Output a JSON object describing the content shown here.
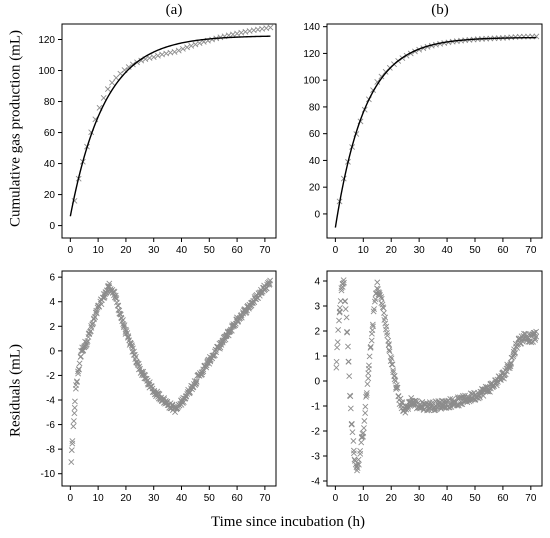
{
  "figure": {
    "ylabel_top": "Cumulative gas production (mL)",
    "ylabel_bottom": "Residuals (mL)",
    "xlabel": "Time since incubation (h)",
    "colors": {
      "observed": "#8c8c8c",
      "fitted": "#000000",
      "axis": "#000000"
    }
  },
  "chart_data": [
    {
      "id": "a_top",
      "type": "scatter",
      "title": "(a)",
      "xlim": [
        -3,
        74
      ],
      "ylim": [
        -8,
        130
      ],
      "xticks": [
        0,
        10,
        20,
        30,
        40,
        50,
        60,
        70
      ],
      "yticks": [
        0,
        20,
        40,
        60,
        80,
        100,
        120
      ],
      "series": [
        {
          "kind": "observed",
          "marker": "x",
          "fit": {
            "A": 122.5,
            "k": 0.08,
            "t0": -0.63
          },
          "residual_scale": 1.0,
          "t_start": 1.5,
          "t_step": 1.5
        },
        {
          "kind": "fitted",
          "line": true,
          "fit": {
            "A": 122.5,
            "k": 0.08,
            "t0": -0.63
          },
          "t_range": [
            0,
            72
          ]
        }
      ]
    },
    {
      "id": "b_top",
      "type": "scatter",
      "title": "(b)",
      "xlim": [
        -3,
        74
      ],
      "ylim": [
        -18,
        142
      ],
      "xticks": [
        0,
        10,
        20,
        30,
        40,
        50,
        60,
        70
      ],
      "yticks": [
        0,
        20,
        40,
        60,
        80,
        100,
        120,
        140
      ],
      "series": [
        {
          "kind": "observed",
          "marker": "x",
          "fit": {
            "A": 132,
            "k": 0.093,
            "t0": 0.8
          },
          "residual_scale": 0.5,
          "t_start": 1.5,
          "t_step": 1.5
        },
        {
          "kind": "fitted",
          "line": true,
          "fit": {
            "A": 132,
            "k": 0.093,
            "t0": 0.8
          },
          "t_range": [
            0,
            72
          ]
        }
      ]
    },
    {
      "id": "a_bottom",
      "type": "scatter",
      "xlim": [
        -3,
        74
      ],
      "ylim": [
        -11,
        6.5
      ],
      "xticks": [
        0,
        10,
        20,
        30,
        40,
        50,
        60,
        70
      ],
      "yticks": [
        -10,
        -8,
        -6,
        -4,
        -2,
        0,
        2,
        4,
        6
      ],
      "residual_knots": {
        "t": [
          0,
          2,
          4,
          6,
          10,
          14,
          16,
          20,
          25,
          30,
          35,
          38,
          40,
          45,
          50,
          55,
          60,
          65,
          70,
          72
        ],
        "y": [
          -10.2,
          -3,
          0,
          0.8,
          3.5,
          5.3,
          4.5,
          1.5,
          -1.5,
          -3.3,
          -4.3,
          -4.8,
          -4.2,
          -2.5,
          -0.8,
          0.8,
          2.5,
          3.8,
          5.2,
          5.6
        ]
      },
      "noise": 0.25,
      "n_points": 400
    },
    {
      "id": "b_bottom",
      "type": "scatter",
      "xlim": [
        -3,
        74
      ],
      "ylim": [
        -4.2,
        4.4
      ],
      "xticks": [
        0,
        10,
        20,
        30,
        40,
        50,
        60,
        70
      ],
      "yticks": [
        -4,
        -3,
        -2,
        -1,
        0,
        1,
        2,
        3,
        4
      ],
      "residual_knots": {
        "t": [
          0,
          1,
          2,
          3,
          4,
          5,
          6,
          7,
          8,
          10,
          12,
          14,
          15,
          17,
          19,
          21,
          23,
          25,
          27,
          30,
          35,
          40,
          45,
          50,
          55,
          60,
          63,
          65,
          68,
          70,
          72
        ],
        "y": [
          0,
          2,
          3.5,
          4,
          2.5,
          0,
          -2,
          -3.2,
          -3.5,
          -2,
          0.5,
          3,
          3.8,
          3,
          1.5,
          0.2,
          -0.8,
          -1.2,
          -0.8,
          -1,
          -1,
          -0.9,
          -0.8,
          -0.6,
          -0.3,
          0.2,
          0.8,
          1.5,
          1.8,
          1.7,
          1.8
        ]
      },
      "noise": 0.18,
      "n_points": 400
    }
  ]
}
